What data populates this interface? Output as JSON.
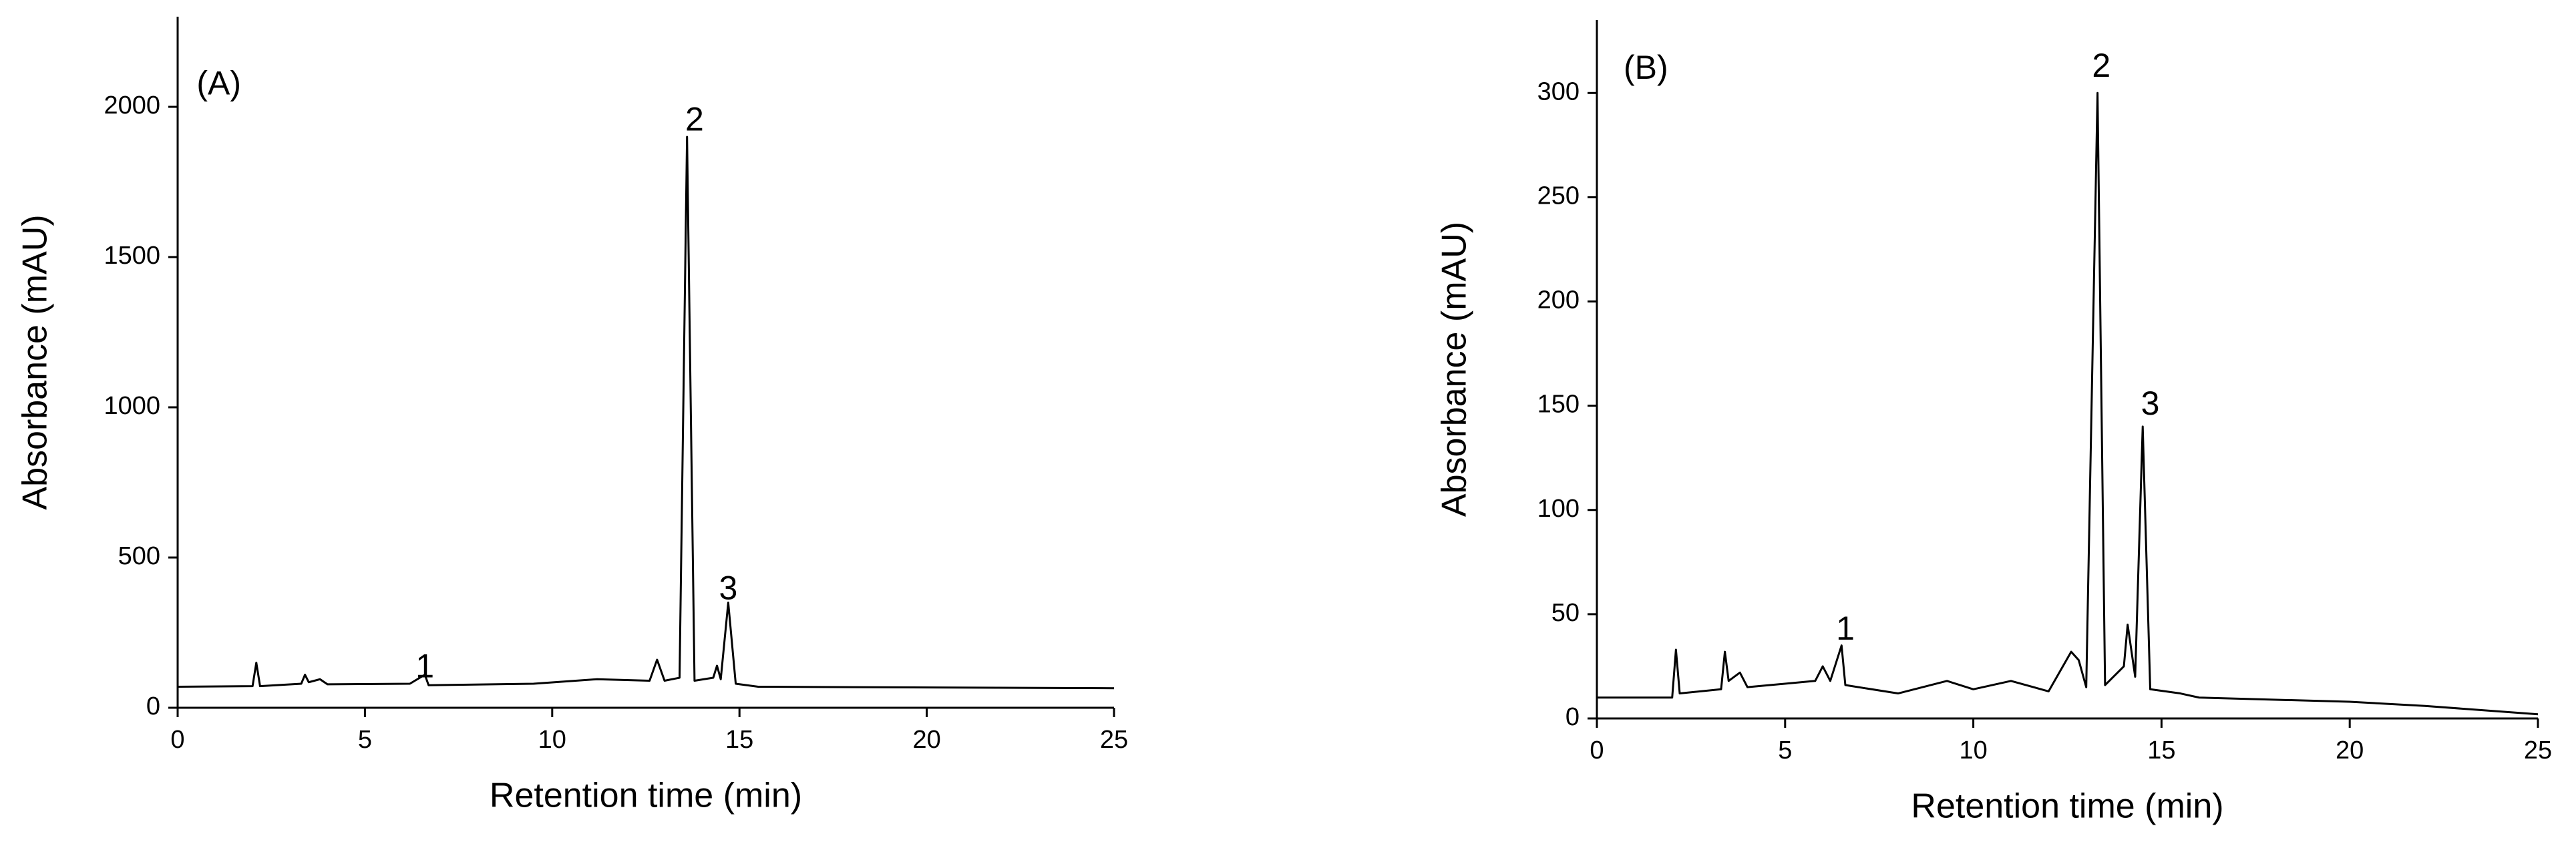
{
  "chart_data": [
    {
      "type": "line",
      "x_label": "Retention time (min)",
      "y_label": "Absorbance (mAU)",
      "xlim": [
        0,
        25
      ],
      "xticks": [
        0,
        5,
        10,
        15,
        20,
        25
      ],
      "ylim": [
        0,
        2300
      ],
      "yticks": [
        0,
        500,
        1000,
        1500,
        2000
      ],
      "color": "#000000",
      "x": [
        0,
        2.0,
        2.1,
        2.2,
        3.3,
        3.4,
        3.5,
        3.8,
        4.0,
        6.2,
        6.4,
        6.6,
        6.7,
        9.5,
        11.2,
        12.6,
        12.8,
        13.0,
        13.4,
        13.6,
        13.8,
        14.3,
        14.4,
        14.5,
        14.7,
        14.9,
        15.5,
        25
      ],
      "values": [
        70,
        72,
        150,
        72,
        80,
        110,
        85,
        95,
        78,
        80,
        95,
        110,
        75,
        80,
        95,
        90,
        160,
        90,
        100,
        1900,
        90,
        100,
        140,
        95,
        350,
        80,
        70,
        65
      ],
      "annotations": [
        {
          "text": "(A)",
          "x": 1.1,
          "y": 2070
        },
        {
          "text": "2",
          "x": 13.8,
          "y": 1950
        },
        {
          "text": "3",
          "x": 14.7,
          "y": 390
        },
        {
          "text": "1",
          "x": 6.6,
          "y": 130
        }
      ]
    },
    {
      "type": "line",
      "x_label": "Retention time (min)",
      "y_label": "Absorbance (mAU)",
      "xlim": [
        0,
        25
      ],
      "xticks": [
        0,
        5,
        10,
        15,
        20,
        25
      ],
      "ylim": [
        0,
        335
      ],
      "yticks": [
        0,
        50,
        100,
        150,
        200,
        250,
        300
      ],
      "color": "#000000",
      "x": [
        0,
        2.0,
        2.1,
        2.2,
        3.3,
        3.4,
        3.5,
        3.8,
        4.0,
        5.8,
        6.0,
        6.2,
        6.5,
        6.6,
        8,
        9.3,
        10,
        11,
        12,
        12.6,
        12.8,
        13.0,
        13.3,
        13.5,
        14.0,
        14.1,
        14.3,
        14.5,
        14.7,
        15.5,
        16,
        20,
        22,
        25
      ],
      "values": [
        10,
        10,
        33,
        12,
        14,
        32,
        18,
        22,
        15,
        18,
        25,
        18,
        35,
        16,
        12,
        18,
        14,
        18,
        13,
        32,
        28,
        15,
        300,
        16,
        25,
        45,
        20,
        140,
        14,
        12,
        10,
        8,
        6,
        2
      ],
      "annotations": [
        {
          "text": "(B)",
          "x": 1.3,
          "y": 311
        },
        {
          "text": "2",
          "x": 13.4,
          "y": 312
        },
        {
          "text": "3",
          "x": 14.7,
          "y": 150
        },
        {
          "text": "1",
          "x": 6.6,
          "y": 42
        }
      ]
    }
  ]
}
